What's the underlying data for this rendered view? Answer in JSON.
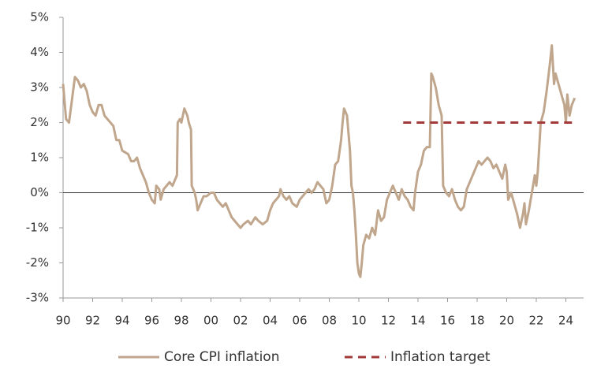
{
  "chart_data": {
    "type": "line",
    "xlim": [
      1990,
      2025.2
    ],
    "xticks": [
      {
        "value": 1990,
        "label": "90"
      },
      {
        "value": 1992,
        "label": "92"
      },
      {
        "value": 1994,
        "label": "94"
      },
      {
        "value": 1996,
        "label": "96"
      },
      {
        "value": 1998,
        "label": "98"
      },
      {
        "value": 2000,
        "label": "00"
      },
      {
        "value": 2002,
        "label": "02"
      },
      {
        "value": 2004,
        "label": "04"
      },
      {
        "value": 2006,
        "label": "06"
      },
      {
        "value": 2008,
        "label": "08"
      },
      {
        "value": 2010,
        "label": "10"
      },
      {
        "value": 2012,
        "label": "12"
      },
      {
        "value": 2014,
        "label": "14"
      },
      {
        "value": 2016,
        "label": "16"
      },
      {
        "value": 2018,
        "label": "18"
      },
      {
        "value": 2020,
        "label": "20"
      },
      {
        "value": 2022,
        "label": "22"
      },
      {
        "value": 2024,
        "label": "24"
      }
    ],
    "ylim": [
      -3,
      5
    ],
    "yticks": [
      {
        "value": -3,
        "label": "-3%"
      },
      {
        "value": -2,
        "label": "-2%"
      },
      {
        "value": -1,
        "label": "-1%"
      },
      {
        "value": 0,
        "label": "0%"
      },
      {
        "value": 1,
        "label": "1%"
      },
      {
        "value": 2,
        "label": "2%"
      },
      {
        "value": 3,
        "label": "3%"
      },
      {
        "value": 4,
        "label": "4%"
      },
      {
        "value": 5,
        "label": "5%"
      }
    ],
    "zero_line": true,
    "series": [
      {
        "name": "Core CPI inflation",
        "color": "#c0a68c",
        "dashed": false,
        "x": [
          1990.0,
          1990.2,
          1990.4,
          1990.8,
          1991.0,
          1991.2,
          1991.4,
          1991.6,
          1991.8,
          1992.0,
          1992.2,
          1992.4,
          1992.6,
          1992.8,
          1993.0,
          1993.4,
          1993.6,
          1993.8,
          1994.0,
          1994.4,
          1994.6,
          1994.8,
          1995.0,
          1995.2,
          1995.4,
          1995.6,
          1995.8,
          1996.0,
          1996.2,
          1996.3,
          1996.5,
          1996.6,
          1996.8,
          1997.0,
          1997.2,
          1997.4,
          1997.6,
          1997.7,
          1997.75,
          1997.9,
          1998.0,
          1998.2,
          1998.4,
          1998.5,
          1998.65,
          1998.7,
          1998.9,
          1999.0,
          1999.1,
          1999.3,
          1999.5,
          1999.7,
          2000.0,
          2000.2,
          2000.4,
          2000.6,
          2000.8,
          2001.0,
          2001.2,
          2001.4,
          2001.6,
          2001.8,
          2002.0,
          2002.2,
          2002.5,
          2002.7,
          2003.0,
          2003.2,
          2003.5,
          2003.8,
          2004.0,
          2004.2,
          2004.4,
          2004.6,
          2004.7,
          2004.9,
          2005.1,
          2005.3,
          2005.5,
          2005.8,
          2006.0,
          2006.2,
          2006.4,
          2006.6,
          2006.8,
          2007.0,
          2007.2,
          2007.4,
          2007.6,
          2007.8,
          2008.0,
          2008.2,
          2008.4,
          2008.6,
          2008.8,
          2008.9,
          2009.0,
          2009.2,
          2009.4,
          2009.5,
          2009.6,
          2009.7,
          2009.8,
          2009.9,
          2010.0,
          2010.1,
          2010.2,
          2010.3,
          2010.5,
          2010.7,
          2010.9,
          2011.1,
          2011.3,
          2011.5,
          2011.7,
          2011.9,
          2012.1,
          2012.3,
          2012.5,
          2012.7,
          2012.9,
          2013.1,
          2013.3,
          2013.5,
          2013.7,
          2013.8,
          2014.0,
          2014.2,
          2014.4,
          2014.6,
          2014.8,
          2014.9,
          2015.0,
          2015.2,
          2015.4,
          2015.6,
          2015.7,
          2015.9,
          2016.1,
          2016.3,
          2016.5,
          2016.7,
          2016.9,
          2017.1,
          2017.3,
          2017.5,
          2017.7,
          2017.9,
          2018.1,
          2018.3,
          2018.5,
          2018.7,
          2018.9,
          2019.1,
          2019.3,
          2019.5,
          2019.7,
          2019.8,
          2019.9,
          2020.0,
          2020.1,
          2020.3,
          2020.5,
          2020.7,
          2020.9,
          2021.1,
          2021.2,
          2021.3,
          2021.5,
          2021.7,
          2021.9,
          2022.0,
          2022.1,
          2022.3,
          2022.5,
          2022.7,
          2022.9,
          2023.0,
          2023.05,
          2023.2,
          2023.3,
          2023.5,
          2023.7,
          2023.9,
          2024.0,
          2024.1,
          2024.25,
          2024.4,
          2024.6
        ],
        "values": [
          3.1,
          2.1,
          2.0,
          3.3,
          3.2,
          3.0,
          3.1,
          2.9,
          2.5,
          2.3,
          2.2,
          2.5,
          2.5,
          2.2,
          2.1,
          1.9,
          1.5,
          1.5,
          1.2,
          1.1,
          0.9,
          0.9,
          1.0,
          0.7,
          0.5,
          0.3,
          0.0,
          -0.2,
          -0.3,
          0.2,
          0.1,
          -0.2,
          0.1,
          0.2,
          0.3,
          0.2,
          0.4,
          0.5,
          2.0,
          2.1,
          2.0,
          2.4,
          2.2,
          2.0,
          1.8,
          0.2,
          0.0,
          -0.2,
          -0.5,
          -0.3,
          -0.1,
          -0.1,
          0.0,
          0.0,
          -0.2,
          -0.3,
          -0.4,
          -0.3,
          -0.5,
          -0.7,
          -0.8,
          -0.9,
          -1.0,
          -0.9,
          -0.8,
          -0.9,
          -0.7,
          -0.8,
          -0.9,
          -0.8,
          -0.5,
          -0.3,
          -0.2,
          -0.1,
          0.1,
          -0.1,
          -0.2,
          -0.1,
          -0.3,
          -0.4,
          -0.2,
          -0.1,
          0.0,
          0.1,
          0.0,
          0.1,
          0.3,
          0.2,
          0.1,
          -0.3,
          -0.2,
          0.2,
          0.8,
          0.9,
          1.5,
          2.0,
          2.4,
          2.2,
          1.2,
          0.2,
          0.0,
          -0.5,
          -1.2,
          -2.0,
          -2.3,
          -2.4,
          -2.0,
          -1.5,
          -1.2,
          -1.3,
          -1.0,
          -1.2,
          -0.5,
          -0.8,
          -0.7,
          -0.2,
          0.0,
          0.2,
          0.0,
          -0.2,
          0.1,
          -0.1,
          -0.2,
          -0.4,
          -0.5,
          0.0,
          0.6,
          0.8,
          1.2,
          1.3,
          1.3,
          3.4,
          3.3,
          3.0,
          2.5,
          2.2,
          0.2,
          0.0,
          -0.1,
          0.1,
          -0.2,
          -0.4,
          -0.5,
          -0.4,
          0.1,
          0.3,
          0.5,
          0.7,
          0.9,
          0.8,
          0.9,
          1.0,
          0.9,
          0.7,
          0.8,
          0.6,
          0.4,
          0.6,
          0.8,
          0.6,
          -0.2,
          0.0,
          -0.3,
          -0.6,
          -1.0,
          -0.6,
          -0.3,
          -0.9,
          -0.5,
          0.0,
          0.5,
          0.2,
          0.6,
          2.0,
          2.3,
          2.9,
          3.6,
          4.0,
          4.2,
          3.1,
          3.4,
          3.1,
          2.8,
          2.5,
          2.0,
          2.8,
          2.2,
          2.5,
          2.7
        ]
      },
      {
        "name": "Inflation target",
        "color": "#a33a3a",
        "dashed": true,
        "x": [
          2013.0,
          2024.6
        ],
        "values": [
          2,
          2
        ]
      }
    ]
  }
}
